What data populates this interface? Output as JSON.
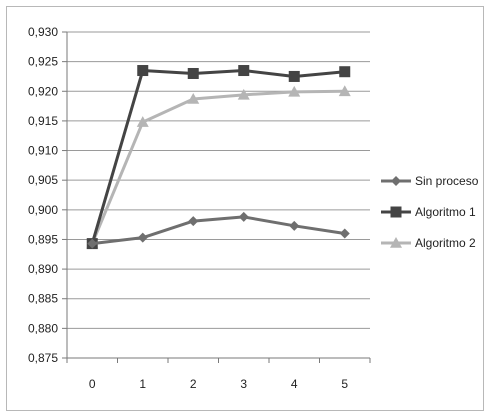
{
  "chart_data": {
    "type": "line",
    "x": [
      0,
      1,
      2,
      3,
      4,
      5
    ],
    "ylim": [
      0.875,
      0.93
    ],
    "yticks": [
      0.875,
      0.88,
      0.885,
      0.89,
      0.895,
      0.9,
      0.905,
      0.91,
      0.915,
      0.92,
      0.925,
      0.93
    ],
    "ytick_labels": [
      "0,875",
      "0,880",
      "0,885",
      "0,890",
      "0,895",
      "0,900",
      "0,905",
      "0,910",
      "0,915",
      "0,920",
      "0,925",
      "0,930"
    ],
    "xtick_labels": [
      "0",
      "1",
      "2",
      "3",
      "4",
      "5"
    ],
    "grid": "horizontal",
    "legend_placement": "right",
    "series": [
      {
        "name": "Sin proceso",
        "color": "#6f6f6f",
        "marker": "diamond",
        "values": [
          0.8943,
          0.8953,
          0.8981,
          0.8988,
          0.8973,
          0.896
        ]
      },
      {
        "name": "Algoritmo 1",
        "color": "#444444",
        "marker": "square",
        "values": [
          0.8943,
          0.9235,
          0.923,
          0.9235,
          0.9225,
          0.9233
        ]
      },
      {
        "name": "Algoritmo 2",
        "color": "#b5b5b5",
        "marker": "triangle",
        "values": [
          0.8943,
          0.9148,
          0.9187,
          0.9194,
          0.9199,
          0.92
        ]
      }
    ]
  }
}
